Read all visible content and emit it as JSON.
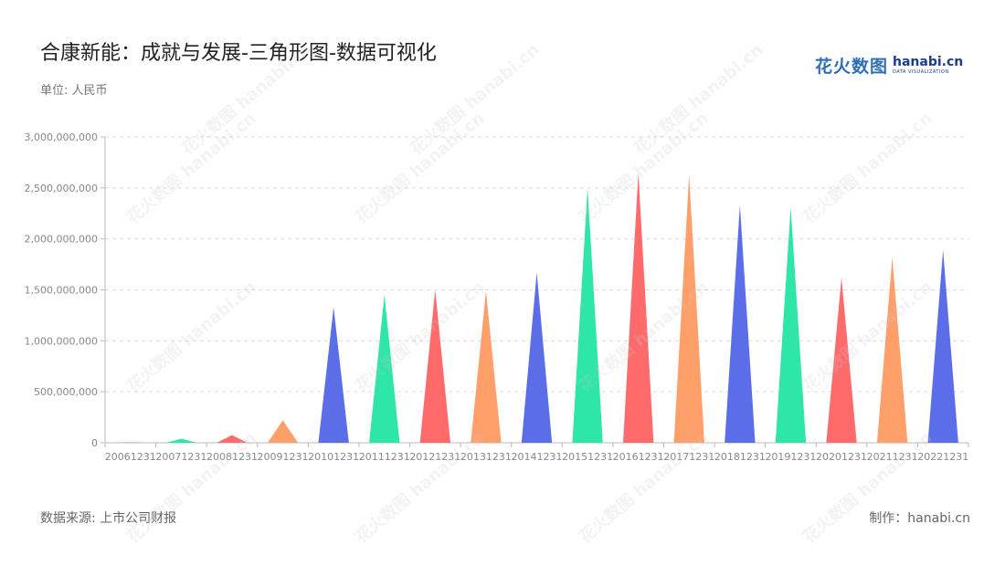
{
  "title": "合康新能：成就与发展-三角形图-数据可视化",
  "unit_label": "单位: 人民币",
  "logo": {
    "cn": "花火数图",
    "en": "hanabi.cn",
    "sub": "DATA VISUALIZATION"
  },
  "footer": {
    "source": "数据来源: 上市公司财报",
    "maker": "制作：hanabi.cn"
  },
  "watermark_text": "花火数图 hanabi.cn",
  "colors": [
    "#5b6ee8",
    "#2ee6a8",
    "#ff6b6b",
    "#ffa06b"
  ],
  "chart_data": {
    "type": "bar",
    "bar_shape": "triangle",
    "categories": [
      "20061231",
      "20071231",
      "20081231",
      "20091231",
      "20101231",
      "20111231",
      "20121231",
      "20131231",
      "20141231",
      "20151231",
      "20161231",
      "20171231",
      "20181231",
      "20191231",
      "20201231",
      "20211231",
      "20221231"
    ],
    "values": [
      3000000,
      40000000,
      75000000,
      220000000,
      1330000000,
      1450000000,
      1500000000,
      1490000000,
      1670000000,
      2500000000,
      2650000000,
      2630000000,
      2330000000,
      2310000000,
      1620000000,
      1820000000,
      1890000000
    ],
    "ylim": [
      0,
      3000000000
    ],
    "yticks": [
      "0",
      "500,000,000",
      "1,000,000,000",
      "1,500,000,000",
      "2,000,000,000",
      "2,500,000,000",
      "3,000,000,000"
    ],
    "grid": true,
    "xlabel": "",
    "ylabel": ""
  }
}
